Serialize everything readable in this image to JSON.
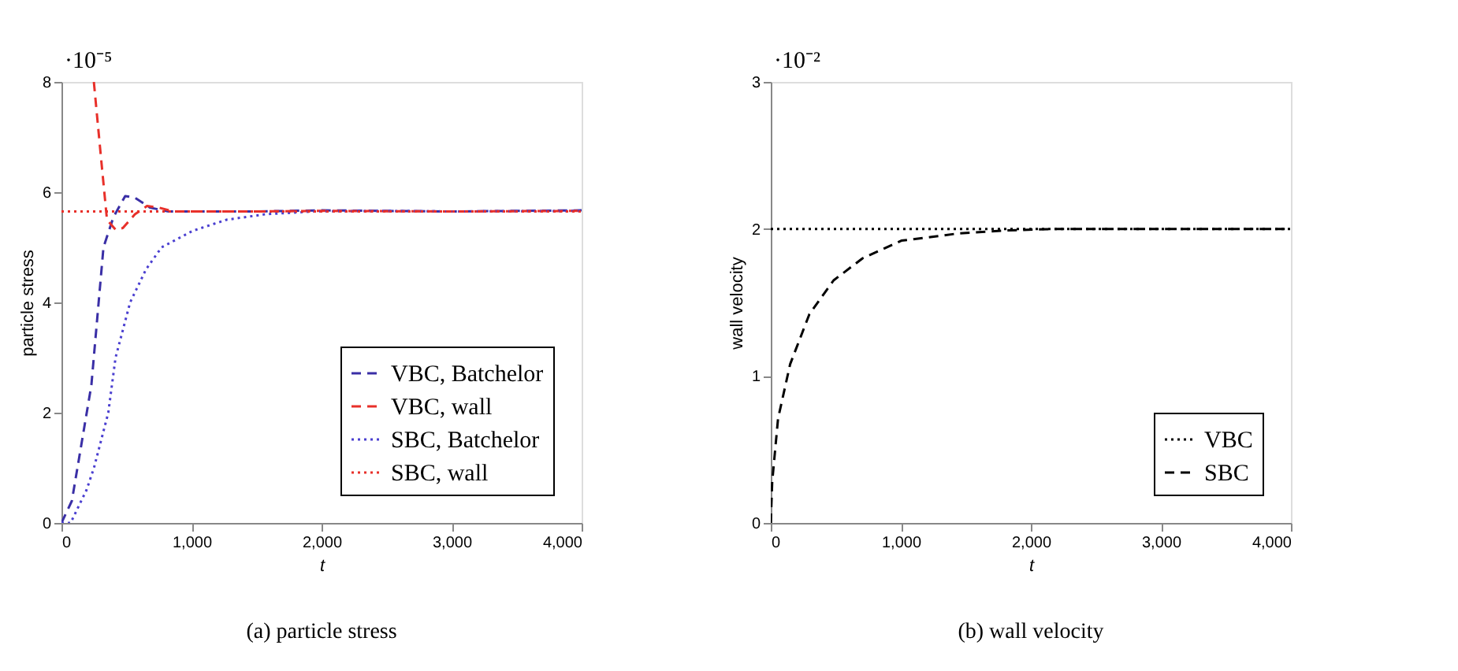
{
  "chart_data": [
    {
      "type": "line",
      "xlabel": "t",
      "ylabel": "particle stress",
      "xlim": [
        0,
        4000
      ],
      "ylim": [
        0,
        8
      ],
      "xticks": [
        0,
        {
          "value": 1000,
          "label": "1,000"
        },
        {
          "value": 2000,
          "label": "2,000"
        },
        {
          "value": 3000,
          "label": "3,000"
        },
        {
          "value": 4000,
          "label": "4,000"
        }
      ],
      "yticks": [
        0,
        2,
        4,
        6,
        8
      ],
      "grid": false,
      "legend": "bottom right",
      "marker": "none",
      "annotations": [
        "·10⁻⁵",
        "(a) particle stress"
      ],
      "series": [
        {
          "name": "VBC, Batchelor",
          "color": "#3a2fa6",
          "line_style": "dashed",
          "x": [
            0,
            80,
            230,
            323,
            400,
            490,
            565,
            680,
            825,
            1500,
            2000,
            2500,
            3000,
            3500,
            4000
          ],
          "values": [
            0,
            0.4,
            2.5,
            5.0,
            5.55,
            5.93,
            5.9,
            5.72,
            5.65,
            5.65,
            5.67,
            5.66,
            5.65,
            5.66,
            5.67
          ]
        },
        {
          "name": "VBC, wall",
          "color": "#e8302a",
          "line_style": "dashed",
          "x": [
            249,
            305,
            350,
            416,
            472,
            565,
            658,
            750,
            860,
            1500,
            2000,
            3000,
            4000
          ],
          "values": [
            8,
            6.6,
            5.5,
            5.32,
            5.35,
            5.6,
            5.75,
            5.72,
            5.65,
            5.65,
            5.66,
            5.65,
            5.66
          ]
        },
        {
          "name": "SBC, Batchelor",
          "color": "#4a3fd0",
          "line_style": "dotted",
          "x": [
            0,
            70,
            193,
            250,
            305,
            360,
            416,
            528,
            650,
            770,
            1010,
            1270,
            1570,
            1940,
            2500,
            3000,
            4000
          ],
          "values": [
            0,
            0,
            0.6,
            1.0,
            1.5,
            2.0,
            3.0,
            4.0,
            4.6,
            5.0,
            5.3,
            5.5,
            5.6,
            5.65,
            5.66,
            5.65,
            5.66
          ]
        },
        {
          "name": "SBC, wall",
          "color": "#e8302a",
          "line_style": "dotted",
          "x": [
            0,
            4000
          ],
          "values": [
            5.65,
            5.65
          ]
        }
      ]
    },
    {
      "type": "line",
      "xlabel": "t",
      "ylabel": "wall velocity",
      "xlim": [
        0,
        4000
      ],
      "ylim": [
        0,
        3
      ],
      "xticks": [
        0,
        {
          "value": 1000,
          "label": "1,000"
        },
        {
          "value": 2000,
          "label": "2,000"
        },
        {
          "value": 3000,
          "label": "3,000"
        },
        {
          "value": 4000,
          "label": "4,000"
        }
      ],
      "yticks": [
        0,
        1,
        2,
        3
      ],
      "grid": false,
      "legend": "bottom right",
      "marker": "none",
      "annotations": [
        "·10⁻²",
        "(b) wall velocity"
      ],
      "series": [
        {
          "name": "VBC",
          "color": "#000000",
          "line_style": "dotted",
          "x": [
            0,
            4000
          ],
          "values": [
            2,
            2
          ]
        },
        {
          "name": "SBC",
          "color": "#000000",
          "line_style": "dashed",
          "x": [
            0,
            11,
            56,
            149,
            297,
            483,
            706,
            1004,
            1450,
            1822,
            2200,
            3000,
            4000
          ],
          "values": [
            0,
            0.28,
            0.71,
            1.08,
            1.42,
            1.65,
            1.8,
            1.92,
            1.97,
            1.99,
            2.0,
            2.0,
            2.0
          ]
        }
      ]
    }
  ]
}
